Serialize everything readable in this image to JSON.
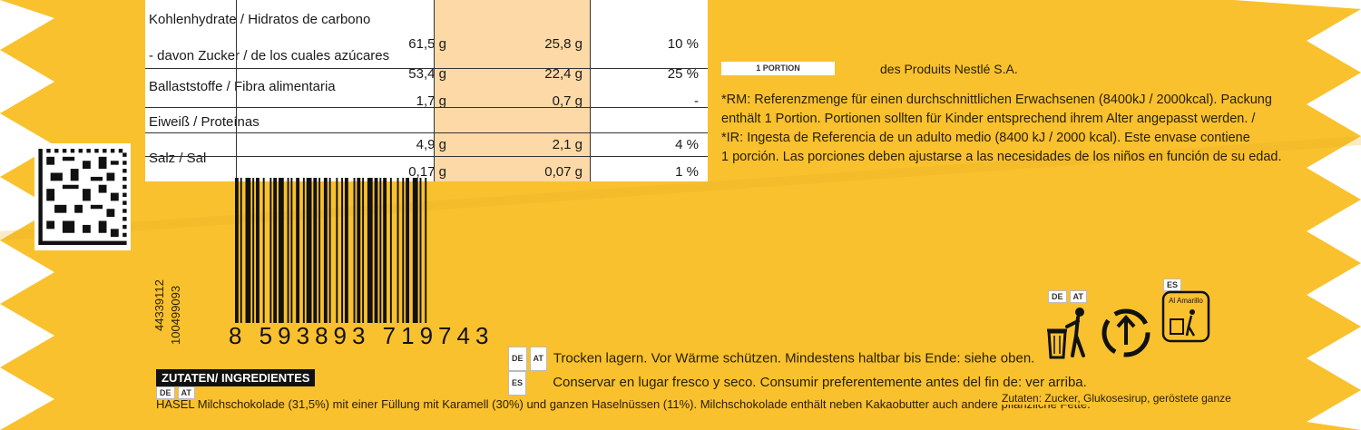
{
  "nutrition_rows": [
    {
      "label": "Kohlenhydrate / Hidratos de carbono",
      "v1": "61,5 g",
      "v2": "25,8 g",
      "v3": "10 %"
    },
    {
      "label": "- davon Zucker / de los cuales azúcares",
      "v1": "53,4 g",
      "v2": "22,4 g",
      "v3": "25 %"
    },
    {
      "label": "Ballaststoffe / Fibra alimentaria",
      "v1": "1,7 g",
      "v2": "0,7 g",
      "v3": "-"
    },
    {
      "label": "Eiweiß / Proteínas",
      "v1": "4,9 g",
      "v2": "2,1 g",
      "v3": "4 %"
    },
    {
      "label": "Salz / Sal",
      "v1": "0,17 g",
      "v2": "0,07 g",
      "v3": "1 %"
    }
  ],
  "portion_label": "1 PORTION",
  "nestle_text": "des Produits Nestlé S.A.",
  "reference_text": [
    "*RM: Referenzmenge für einen durchschnittlichen Erwachsenen (8400kJ / 2000kcal). Packung",
    "enthält 1 Portion. Portionen sollten für Kinder entsprechend ihrem Alter angepasst werden. /",
    "*IR: Ingesta de Referencia de un adulto medio (8400 kJ / 2000 kcal). Este envase contiene",
    "1 porción. Las porciones deben ajustarse a las necesidades de los niños en función de su edad."
  ],
  "barcode_number": "8 593893 719743",
  "side_codes": [
    "44339112",
    "100499093"
  ],
  "storage": {
    "de_at_badges": [
      "DE",
      "AT"
    ],
    "es_badge": "ES",
    "de_text": "Trocken lagern. Vor Wärme schützen. Mindestens haltbar bis Ende: siehe oben.",
    "es_text": "Conservar en lugar fresco y seco. Consumir preferentemente antes del fin de: ver arriba."
  },
  "ingredients": {
    "title": "ZUTATEN/ INGREDIENTES",
    "badges": [
      "DE",
      "AT"
    ],
    "line": "HASEL Milchschokolade (31,5%) mit einer Füllung mit Karamell (30%) und ganzen Haselnüssen (11%). Milchschokolade enthält neben Kakaobutter auch andere pflanzliche Fette.",
    "right": "Zutaten: Zucker, Glukosesirup, geröstete ganze"
  },
  "recycle": {
    "badges": [
      "DE",
      "AT"
    ],
    "es_badge": "ES",
    "es_label": "Al Amarillo"
  },
  "colors": {
    "wrapper": "#f9c12e",
    "highlight": "#fcd9a6",
    "text": "#2a2000"
  }
}
